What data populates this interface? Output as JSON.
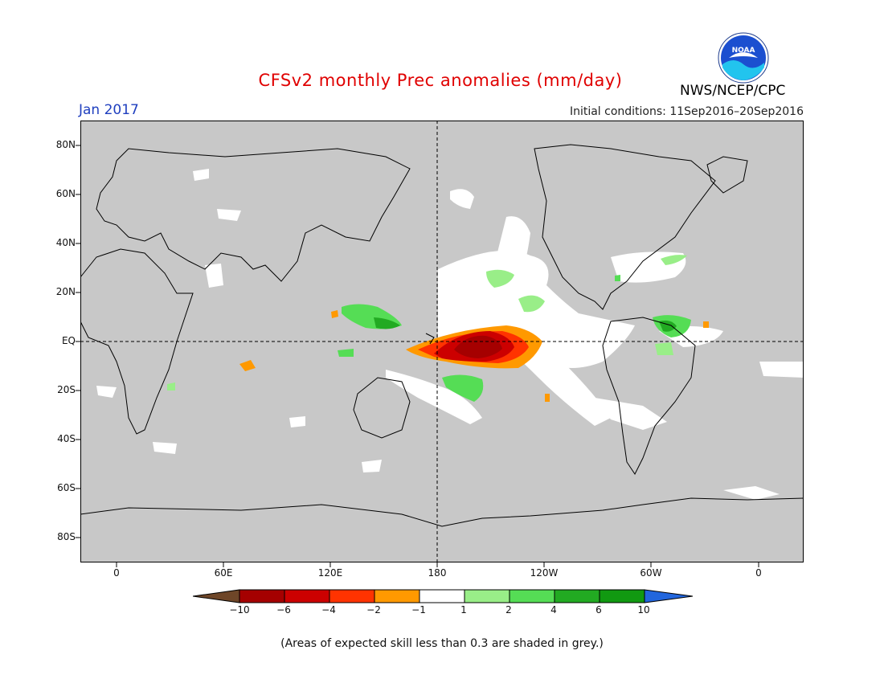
{
  "title": "CFSv2 monthly Prec anomalies (mm/day)",
  "target_month": "Jan 2017",
  "initial_conditions": "Initial conditions: 11Sep2016–20Sep2016",
  "agency": "NWS/NCEP/CPC",
  "logo_text": "NOAA",
  "footnote": "(Areas of expected skill less than 0.3 are shaded in grey.)",
  "lat_labels": [
    "80N",
    "60N",
    "40N",
    "20N",
    "EQ",
    "20S",
    "40S",
    "60S",
    "80S"
  ],
  "lon_labels": [
    "0",
    "60E",
    "120E",
    "180",
    "120W",
    "60W",
    "0"
  ],
  "colorbar": {
    "labels": [
      "−10",
      "−6",
      "−4",
      "−2",
      "−1",
      "1",
      "2",
      "4",
      "6",
      "10"
    ],
    "colors": [
      "#6e4628",
      "#a50000",
      "#cc0000",
      "#ff3300",
      "#ff9900",
      "#ffffff",
      "#99ee88",
      "#55dd55",
      "#22aa22",
      "#119911",
      "#2266dd"
    ]
  },
  "colors": {
    "skill_mask_grey": "#c8c8c8",
    "title_red": "#e00000",
    "month_blue": "#1f3fbf"
  }
}
